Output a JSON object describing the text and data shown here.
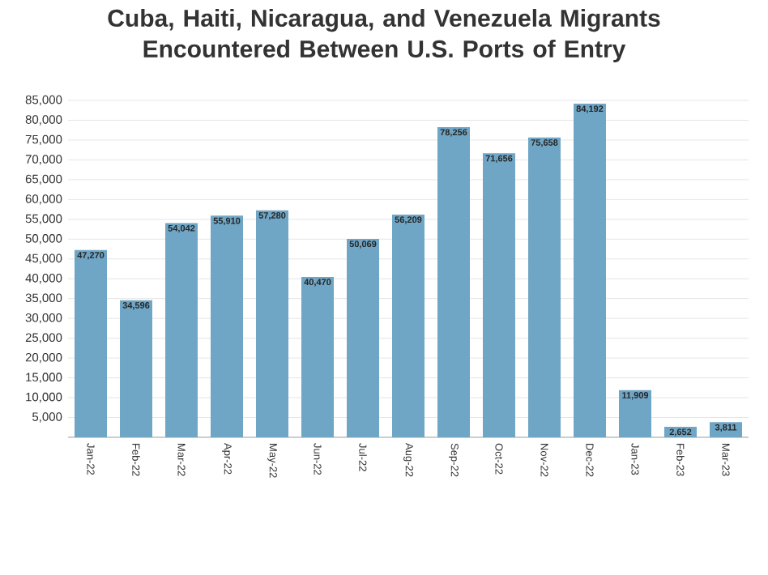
{
  "chart_data": {
    "type": "bar",
    "title": "Cuba, Haiti, Nicaragua, and Venezuela Migrants Encountered Between U.S. Ports of Entry",
    "categories": [
      "Jan-22",
      "Feb-22",
      "Mar-22",
      "Apr-22",
      "May-22",
      "Jun-22",
      "Jul-22",
      "Aug-22",
      "Sep-22",
      "Oct-22",
      "Nov-22",
      "Dec-22",
      "Jan-23",
      "Feb-23",
      "Mar-23"
    ],
    "values": [
      47270,
      34596,
      54042,
      55910,
      57280,
      40470,
      50069,
      56209,
      78256,
      71656,
      75658,
      84192,
      11909,
      2652,
      3811
    ],
    "color": "#6fa6c6",
    "ylim": [
      0,
      85000
    ],
    "yticks": [
      {
        "value": 5000,
        "label": "5,000"
      },
      {
        "value": 10000,
        "label": "10,000"
      },
      {
        "value": 15000,
        "label": "15,000"
      },
      {
        "value": 20000,
        "label": "20,000"
      },
      {
        "value": 25000,
        "label": "25,000"
      },
      {
        "value": 30000,
        "label": "30,000"
      },
      {
        "value": 35000,
        "label": "35,000"
      },
      {
        "value": 40000,
        "label": "40,000"
      },
      {
        "value": 45000,
        "label": "45,000"
      },
      {
        "value": 50000,
        "label": "50,000"
      },
      {
        "value": 55000,
        "label": "55,000"
      },
      {
        "value": 60000,
        "label": "60,000"
      },
      {
        "value": 65000,
        "label": "65,000"
      },
      {
        "value": 70000,
        "label": "70,000"
      },
      {
        "value": 75000,
        "label": "75,000"
      },
      {
        "value": 80000,
        "label": "80,000"
      },
      {
        "value": 85000,
        "label": "85,000"
      }
    ],
    "grid": "y",
    "value_labels": [
      "47,270",
      "34,596",
      "54,042",
      "55,910",
      "57,280",
      "40,470",
      "50,069",
      "56,209",
      "78,256",
      "71,656",
      "75,658",
      "84,192",
      "11,909",
      "2,652",
      "3,811"
    ]
  }
}
